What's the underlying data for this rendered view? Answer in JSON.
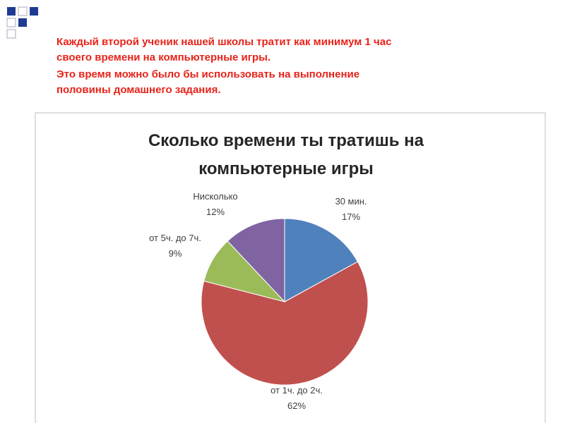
{
  "slide_text": [
    "Каждый второй ученик нашей школы тратит как минимум 1 час",
    "своего времени на компьютерные игры.",
    "Это время можно было бы использовать на выполнение",
    "половины  домашнего задания."
  ],
  "chart_data": {
    "type": "pie",
    "title": "Сколько времени ты тратишь на компьютерные игры",
    "categories": [
      "30 мин.",
      "от 1ч. до 2ч.",
      "от 5ч. до 7ч.",
      "Нисколько"
    ],
    "values": [
      17,
      62,
      9,
      12
    ],
    "value_labels": [
      "17%",
      "62%",
      "9%",
      "12%"
    ],
    "colors": [
      "#4f81bd",
      "#c0504d",
      "#9bbb59",
      "#8064a2"
    ]
  }
}
